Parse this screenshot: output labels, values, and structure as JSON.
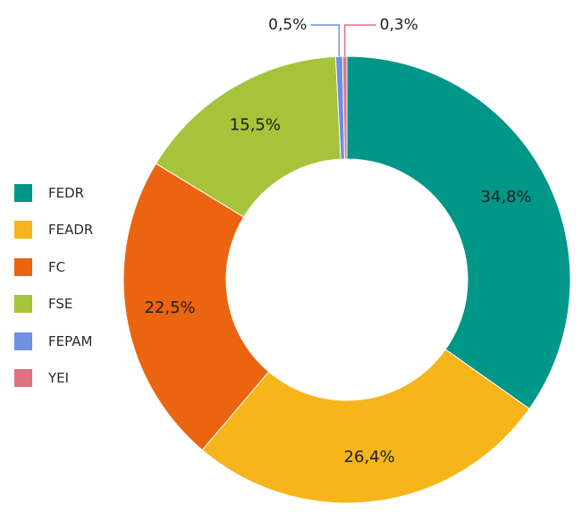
{
  "chart_data": {
    "type": "pie",
    "title": "",
    "categories": [
      "FEDR",
      "FEADR",
      "FC",
      "FSE",
      "FEPAM",
      "YEI"
    ],
    "values": [
      34.8,
      26.4,
      22.5,
      15.5,
      0.5,
      0.3
    ],
    "value_labels": [
      "34,8%",
      "26,4%",
      "22,5%",
      "15,5%",
      "0,5%",
      "0,3%"
    ],
    "colors": [
      "#009688",
      "#f5b51b",
      "#eb6410",
      "#a5c43a",
      "#6f8fe3",
      "#e27185"
    ],
    "donut": true,
    "legend_position": "left"
  }
}
